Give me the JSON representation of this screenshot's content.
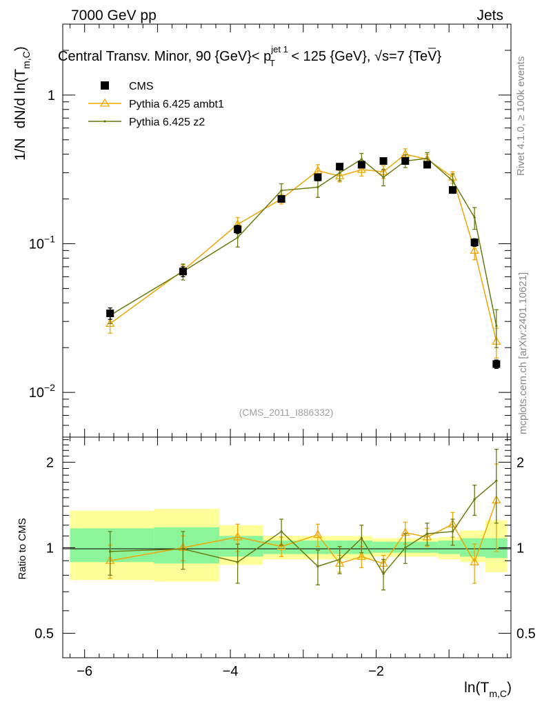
{
  "header": {
    "left": "7000 GeV pp",
    "right": "Jets",
    "title_pre": "Central Transv. Minor, 90 {GeV}< p",
    "title_sup": "jet 1",
    "title_sub": "T",
    "title_mid": " < 125 {GeV}, ",
    "title_sqrt": "√s",
    "title_post": "=7 {TeV}"
  },
  "side": {
    "rivet": "Rivet 4.1.0, ≥ 100k events",
    "mcplots": "mcplots.cern.ch [arXiv:2401.10621]"
  },
  "watermark": "(CMS_2011_I886332)",
  "colors": {
    "cms": "#000000",
    "ambt1": "#f0a500",
    "z2": "#6b7a0c",
    "band_inner": "#8cf59a",
    "band_outer": "#ffff99"
  },
  "chart_data": [
    {
      "type": "line",
      "role": "main",
      "ylabel_left": "1/N",
      "ylabel": "dN/d ln(T",
      "ylabel_sub": "m,C",
      "ylabel_close": ")",
      "yscale": "log",
      "xlim": [
        -6.3,
        -0.15
      ],
      "ylim": [
        0.005,
        3.0
      ],
      "yticks": [
        {
          "value": 1,
          "label": "1"
        },
        {
          "value": 0.1,
          "label": "10",
          "sup": "−1"
        },
        {
          "value": 0.01,
          "label": "10",
          "sup": "−2"
        }
      ],
      "legend": {
        "position": "top-left",
        "entries": [
          {
            "key": "cms",
            "label": "CMS"
          },
          {
            "key": "ambt1",
            "label": "Pythia 6.425 ambt1"
          },
          {
            "key": "z2",
            "label": "Pythia 6.425 z2"
          }
        ]
      },
      "series": [
        {
          "name": "CMS",
          "key": "cms",
          "style": "marker-square",
          "x": [
            -5.65,
            -4.65,
            -3.9,
            -3.3,
            -2.8,
            -2.5,
            -2.2,
            -1.9,
            -1.6,
            -1.3,
            -0.95,
            -0.65,
            -0.35
          ],
          "y": [
            0.034,
            0.065,
            0.125,
            0.2,
            0.28,
            0.33,
            0.34,
            0.36,
            0.36,
            0.34,
            0.23,
            0.102,
            0.0155
          ],
          "err": [
            0.003,
            0.005,
            0.008,
            0.01,
            0.015,
            0.015,
            0.015,
            0.015,
            0.015,
            0.015,
            0.012,
            0.006,
            0.001
          ]
        },
        {
          "name": "Pythia 6.425 ambt1",
          "key": "ambt1",
          "style": "line-triangle",
          "x": [
            -5.65,
            -4.65,
            -3.9,
            -3.3,
            -2.8,
            -2.5,
            -2.2,
            -1.9,
            -1.6,
            -1.3,
            -0.95,
            -0.65,
            -0.35
          ],
          "y": [
            0.029,
            0.066,
            0.135,
            0.2,
            0.31,
            0.285,
            0.315,
            0.305,
            0.4,
            0.37,
            0.28,
            0.09,
            0.022
          ],
          "err": [
            0.004,
            0.006,
            0.015,
            0.015,
            0.03,
            0.025,
            0.03,
            0.03,
            0.035,
            0.03,
            0.025,
            0.012,
            0.005
          ]
        },
        {
          "name": "Pythia 6.425 z2",
          "key": "z2",
          "style": "line-dot",
          "x": [
            -5.65,
            -4.65,
            -3.9,
            -3.3,
            -2.8,
            -2.5,
            -2.2,
            -1.9,
            -1.6,
            -1.3,
            -0.95,
            -0.65,
            -0.35
          ],
          "y": [
            0.033,
            0.065,
            0.11,
            0.228,
            0.24,
            0.3,
            0.37,
            0.28,
            0.36,
            0.375,
            0.265,
            0.15,
            0.028
          ],
          "err": [
            0.004,
            0.008,
            0.015,
            0.025,
            0.035,
            0.035,
            0.035,
            0.035,
            0.035,
            0.035,
            0.03,
            0.025,
            0.008
          ]
        }
      ]
    },
    {
      "type": "line",
      "role": "ratio",
      "ylabel": "Ratio to CMS",
      "yscale": "log",
      "xlabel": "ln(T",
      "xlabel_sub": "m,C",
      "xlabel_close": ")",
      "xlim": [
        -6.3,
        -0.15
      ],
      "ylim": [
        0.41,
        2.45
      ],
      "xticks": [
        {
          "value": -6,
          "label": "−6"
        },
        {
          "value": -4,
          "label": "−4"
        },
        {
          "value": -2,
          "label": "−2"
        }
      ],
      "yticks": [
        {
          "value": 2,
          "label": "2"
        },
        {
          "value": 1,
          "label": "1"
        },
        {
          "value": 0.5,
          "label": "0.5"
        }
      ],
      "bands": [
        {
          "x0": -6.2,
          "x1": -5.05,
          "inner": [
            0.89,
            1.17
          ],
          "outer": [
            0.77,
            1.35
          ]
        },
        {
          "x0": -5.05,
          "x1": -4.15,
          "inner": [
            0.88,
            1.18
          ],
          "outer": [
            0.76,
            1.37
          ]
        },
        {
          "x0": -4.15,
          "x1": -3.55,
          "inner": [
            0.93,
            1.1
          ],
          "outer": [
            0.87,
            1.2
          ]
        },
        {
          "x0": -3.55,
          "x1": -2.05,
          "inner": [
            0.95,
            1.06
          ],
          "outer": [
            0.91,
            1.1
          ]
        },
        {
          "x0": -2.05,
          "x1": -1.15,
          "inner": [
            0.96,
            1.05
          ],
          "outer": [
            0.93,
            1.08
          ]
        },
        {
          "x0": -1.15,
          "x1": -0.85,
          "inner": [
            0.95,
            1.06
          ],
          "outer": [
            0.91,
            1.09
          ]
        },
        {
          "x0": -0.85,
          "x1": -0.5,
          "inner": [
            0.93,
            1.08
          ],
          "outer": [
            0.89,
            1.15
          ]
        },
        {
          "x0": -0.5,
          "x1": -0.2,
          "inner": [
            0.92,
            1.08
          ],
          "outer": [
            0.82,
            1.25
          ]
        }
      ],
      "series": [
        {
          "name": "Pythia 6.425 ambt1",
          "key": "ambt1",
          "style": "line-triangle",
          "x": [
            -5.65,
            -4.65,
            -3.9,
            -3.3,
            -2.8,
            -2.5,
            -2.2,
            -1.9,
            -1.6,
            -1.3,
            -0.95,
            -0.65,
            -0.35
          ],
          "y": [
            0.9,
            1.0,
            1.09,
            1.01,
            1.11,
            0.88,
            0.93,
            0.88,
            1.13,
            1.09,
            1.21,
            0.89,
            1.47
          ],
          "err": [
            0.12,
            0.1,
            0.12,
            0.08,
            0.1,
            0.06,
            0.08,
            0.06,
            0.1,
            0.08,
            0.12,
            0.14,
            0.5
          ]
        },
        {
          "name": "Pythia 6.425 z2",
          "key": "z2",
          "style": "line-dot",
          "x": [
            -5.65,
            -4.65,
            -3.9,
            -3.3,
            -2.8,
            -2.5,
            -2.2,
            -1.9,
            -1.6,
            -1.3,
            -0.95,
            -0.65,
            -0.35
          ],
          "y": [
            0.97,
            0.99,
            0.89,
            1.14,
            0.86,
            0.91,
            1.08,
            0.81,
            1.0,
            1.12,
            1.14,
            1.48,
            1.72
          ],
          "err": [
            0.17,
            0.15,
            0.14,
            0.12,
            0.12,
            0.1,
            0.12,
            0.1,
            0.12,
            0.1,
            0.12,
            0.18,
            0.5
          ]
        }
      ]
    }
  ]
}
